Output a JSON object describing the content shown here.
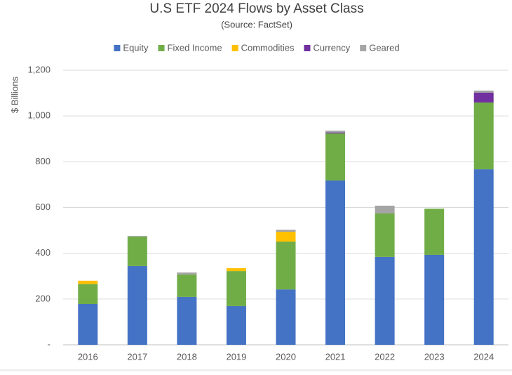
{
  "chart_data": {
    "type": "stacked-bar",
    "title": "U.S ETF 2024 Flows by Asset Class",
    "subtitle": "(Source: FactSet)",
    "y_label": "$ Billions",
    "categories": [
      "2016",
      "2017",
      "2018",
      "2019",
      "2020",
      "2021",
      "2022",
      "2023",
      "2024"
    ],
    "series": [
      {
        "name": "Equity",
        "color": "#4472c4",
        "values": [
          178,
          344,
          209,
          169,
          242,
          718,
          384,
          393,
          767
        ]
      },
      {
        "name": "Fixed Income",
        "color": "#70ad47",
        "values": [
          88,
          129,
          98,
          153,
          209,
          206,
          190,
          202,
          292
        ]
      },
      {
        "name": "Commodities",
        "color": "#ffc000",
        "values": [
          14,
          0,
          0,
          13,
          43,
          0,
          0,
          0,
          0
        ]
      },
      {
        "name": "Currency",
        "color": "#7030a0",
        "values": [
          0,
          0,
          0,
          0,
          0,
          4,
          0,
          0,
          43
        ]
      },
      {
        "name": "Geared",
        "color": "#a5a5a5",
        "values": [
          0,
          3,
          9,
          0,
          9,
          8,
          34,
          0,
          9
        ]
      }
    ],
    "ylim": [
      0,
      1200
    ],
    "yticks": [
      {
        "value": 0,
        "label": "-"
      },
      200,
      400,
      600,
      800,
      {
        "value": 1000,
        "label": "1,000"
      },
      {
        "value": 1200,
        "label": "1,200"
      }
    ],
    "grid": true,
    "legend": "top"
  }
}
